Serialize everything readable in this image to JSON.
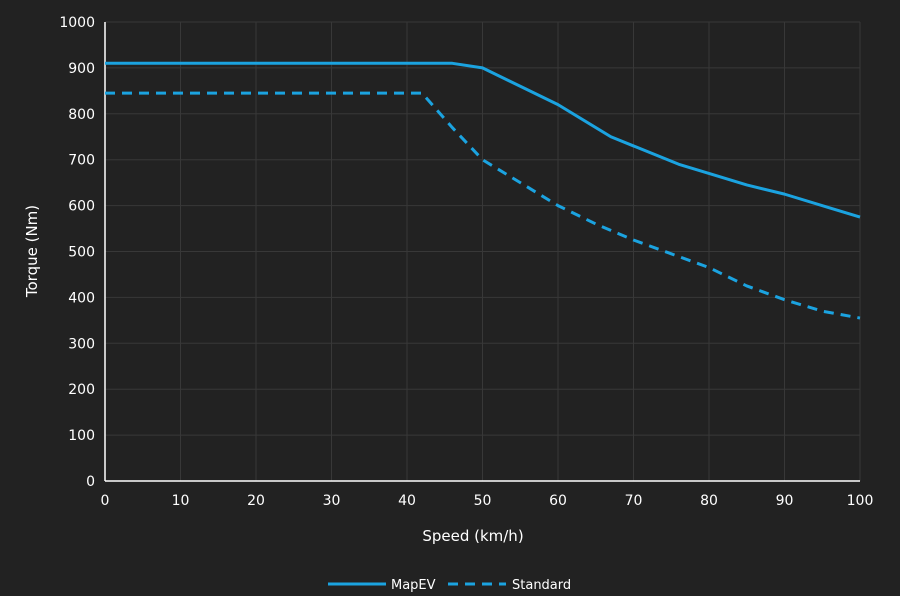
{
  "chart_data": {
    "type": "line",
    "title": "",
    "xlabel": "Speed (km/h)",
    "ylabel": "Torque (Nm)",
    "xlim": [
      0,
      100
    ],
    "ylim": [
      0,
      1000
    ],
    "xticks": [
      0,
      10,
      20,
      30,
      40,
      50,
      60,
      70,
      80,
      90,
      100
    ],
    "yticks": [
      0,
      100,
      200,
      300,
      400,
      500,
      600,
      700,
      800,
      900,
      1000
    ],
    "grid": true,
    "legend_position": "bottom-center",
    "series": [
      {
        "name": "MapEV",
        "style": "solid",
        "color": "#1ba3e0",
        "x": [
          0,
          10,
          20,
          30,
          40,
          46,
          50,
          55,
          60,
          67,
          70,
          76,
          80,
          85,
          90,
          96,
          100
        ],
        "y": [
          910,
          910,
          910,
          910,
          910,
          910,
          900,
          860,
          820,
          750,
          730,
          690,
          670,
          645,
          625,
          595,
          575
        ]
      },
      {
        "name": "Standard",
        "style": "dashed",
        "color": "#1ba3e0",
        "x": [
          0,
          10,
          20,
          30,
          40,
          42,
          46,
          50,
          55,
          60,
          65,
          70,
          75,
          80,
          85,
          90,
          95,
          100
        ],
        "y": [
          845,
          845,
          845,
          845,
          845,
          845,
          770,
          700,
          650,
          600,
          560,
          525,
          495,
          465,
          425,
          395,
          370,
          355
        ]
      }
    ]
  }
}
